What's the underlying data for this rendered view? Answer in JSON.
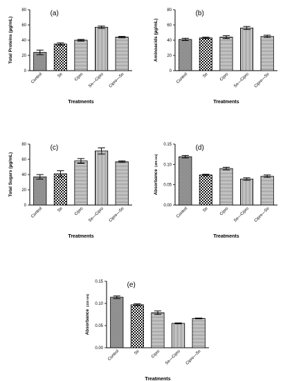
{
  "chart_data": [
    {
      "type": "bar",
      "panel_label": "(a)",
      "categories": [
        "Control",
        "Se",
        "Cipro",
        "Se—Cipro",
        "Cipro—Se"
      ],
      "values": [
        24,
        35,
        40,
        57,
        44
      ],
      "errors": [
        3,
        1.5,
        1,
        1.5,
        1
      ],
      "ylabel": "Total Proteins (µg/mL)",
      "ylabel_unit": "",
      "xlabel": "Treatments",
      "ylim": [
        0,
        80
      ],
      "yticks": [
        0,
        20,
        40,
        60,
        80
      ],
      "tick_format": "int",
      "patterns": [
        "dense",
        "check",
        "hlines",
        "vlines",
        "hlines"
      ]
    },
    {
      "type": "bar",
      "panel_label": "(b)",
      "categories": [
        "Control",
        "Se",
        "Cipro",
        "Se—Cipro",
        "Cipro—Se"
      ],
      "values": [
        41,
        43,
        44,
        56,
        45
      ],
      "errors": [
        1.5,
        1,
        2,
        2,
        1.5
      ],
      "ylabel": "Aminoacids (µg/mL)",
      "ylabel_unit": "",
      "xlabel": "Treatments",
      "ylim": [
        0,
        80
      ],
      "yticks": [
        0,
        20,
        40,
        60,
        80
      ],
      "tick_format": "int",
      "patterns": [
        "dense",
        "check",
        "hlines",
        "vlines",
        "hlines"
      ]
    },
    {
      "type": "bar",
      "panel_label": "(c)",
      "categories": [
        "Control",
        "Se",
        "Cipro",
        "Se—Cipro",
        "Cipro—Se"
      ],
      "values": [
        37,
        41,
        58,
        71,
        57
      ],
      "errors": [
        3,
        4,
        3,
        4,
        1
      ],
      "ylabel": "Total Sugars (µg/mL)",
      "ylabel_unit": "",
      "xlabel": "Treatments",
      "ylim": [
        0,
        80
      ],
      "yticks": [
        0,
        20,
        40,
        60,
        80
      ],
      "tick_format": "int",
      "patterns": [
        "dense",
        "check",
        "hlines",
        "vlines",
        "hlines"
      ]
    },
    {
      "type": "bar",
      "panel_label": "(d)",
      "categories": [
        "Control",
        "Se",
        "Cipro",
        "Se—Cipro",
        "Cipro—Se"
      ],
      "values": [
        0.119,
        0.074,
        0.09,
        0.064,
        0.071
      ],
      "errors": [
        0.003,
        0.002,
        0.003,
        0.003,
        0.003
      ],
      "ylabel": "Absorbance",
      "ylabel_unit": "(405 nm)",
      "xlabel": "Treatments",
      "ylim": [
        0,
        0.15
      ],
      "yticks": [
        0,
        0.05,
        0.1,
        0.15
      ],
      "tick_format": "fixed2",
      "patterns": [
        "dense",
        "check",
        "hlines",
        "vlines",
        "hlines"
      ]
    },
    {
      "type": "bar",
      "panel_label": "(e)",
      "categories": [
        "Control",
        "Se",
        "Cipro",
        "Se—Cipro",
        "Cipro—Se"
      ],
      "values": [
        0.114,
        0.097,
        0.079,
        0.055,
        0.066
      ],
      "errors": [
        0.003,
        0.002,
        0.004,
        0.001,
        0.001
      ],
      "ylabel": "Absorbance",
      "ylabel_unit": "(410 nm)",
      "xlabel": "Treatments",
      "ylim": [
        0,
        0.15
      ],
      "yticks": [
        0,
        0.05,
        0.1,
        0.15
      ],
      "tick_format": "fixed2",
      "patterns": [
        "dense",
        "check",
        "hlines",
        "vlines",
        "hlines"
      ]
    }
  ]
}
